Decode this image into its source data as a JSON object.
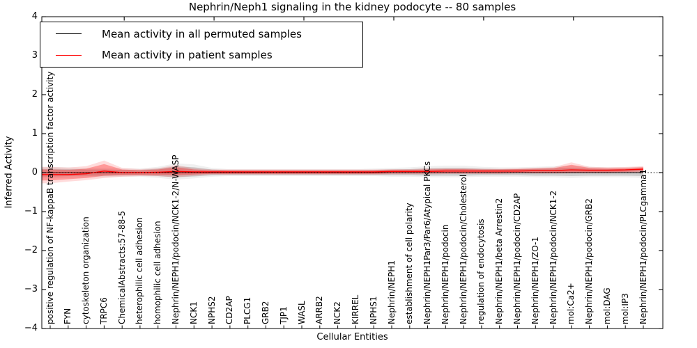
{
  "figure": {
    "title": "Nephrin/Neph1 signaling in the kidney podocyte -- 80 samples",
    "background": "#ffffff"
  },
  "chart_data": {
    "type": "line",
    "title": "Nephrin/Neph1 signaling in the kidney podocyte -- 80 samples",
    "xlabel": "Cellular Entities",
    "ylabel": "Inferred Activity",
    "ylim": [
      -4,
      4
    ],
    "yticks": [
      4,
      3,
      2,
      1,
      0,
      -1,
      -2,
      -3,
      -4
    ],
    "x_numeric_top_ticks": [
      5,
      10,
      15,
      20,
      25,
      30
    ],
    "grid": false,
    "zero_line_style": "dotted",
    "legend_position": "upper left",
    "categories": [
      "positive regulation of NF-kappaB transcription factor activity",
      "FYN",
      "cytoskeleton organization",
      "TRPC6",
      "ChemicalAbstracts:57-88-5",
      "heterophilic cell adhesion",
      "homophilic cell adhesion",
      "Nephrin/NEPH1/podocin/NCK1-2/N-WASP",
      "NCK1",
      "NPHS2",
      "CD2AP",
      "PLCG1",
      "GRB2",
      "TJP1",
      "WASL",
      "ARRB2",
      "NCK2",
      "KIRREL",
      "NPHS1",
      "Nephrin/NEPH1",
      "establishment of cell polarity",
      "Nephrin/NEPH1Par3/Par6/Atypical PKCs",
      "Nephrin/NEPH1/podocin",
      "Nephrin/NEPH1/podocin/Cholesterol",
      "regulation of endocytosis",
      "Nephrin/NEPH1/beta Arrestin2",
      "Nephrin/NEPH1/podocin/CD2AP",
      "Nephrin/NEPH1/ZO-1",
      "Nephrin/NEPH1/podocin/NCK1-2",
      "mol:Ca2+",
      "Nephrin/NEPH1/podocin/GRB2",
      "mol:DAG",
      "mol:IP3",
      "Nephrin/NEPH1/podocin/PLCgamma1"
    ],
    "series": [
      {
        "name": "Mean activity in all permuted samples",
        "color": "#000000",
        "band_color": "#000000",
        "band_opacity": 0.14,
        "values": [
          0,
          0,
          0,
          0,
          0,
          0,
          0,
          0,
          0,
          0,
          0,
          0,
          0,
          0,
          0,
          0,
          0,
          0,
          0,
          0,
          0,
          0,
          0,
          0,
          0,
          0,
          0,
          0,
          0,
          0,
          0,
          0,
          0,
          0
        ],
        "band_upper": [
          0.1,
          0.09,
          0.08,
          0.08,
          0.07,
          0.07,
          0.1,
          0.16,
          0.14,
          0.08,
          0.06,
          0.06,
          0.06,
          0.06,
          0.06,
          0.06,
          0.06,
          0.06,
          0.07,
          0.08,
          0.09,
          0.11,
          0.12,
          0.12,
          0.1,
          0.09,
          0.09,
          0.1,
          0.11,
          0.12,
          0.1,
          0.09,
          0.09,
          0.1
        ],
        "band_lower": [
          -0.1,
          -0.09,
          -0.08,
          -0.08,
          -0.07,
          -0.07,
          -0.09,
          -0.12,
          -0.1,
          -0.07,
          -0.06,
          -0.06,
          -0.06,
          -0.06,
          -0.06,
          -0.06,
          -0.06,
          -0.06,
          -0.06,
          -0.07,
          -0.07,
          -0.08,
          -0.08,
          -0.08,
          -0.07,
          -0.07,
          -0.07,
          -0.08,
          -0.08,
          -0.09,
          -0.08,
          -0.08,
          -0.08,
          -0.09
        ]
      },
      {
        "name": "Mean activity in patient samples",
        "color": "#ff0000",
        "band_color": "#ff0000",
        "band_opacity": 0.3,
        "values": [
          -0.05,
          -0.05,
          -0.03,
          0.04,
          0.0,
          0.0,
          0.01,
          0.03,
          0.02,
          0.02,
          0.02,
          0.02,
          0.02,
          0.02,
          0.02,
          0.02,
          0.02,
          0.02,
          0.02,
          0.03,
          0.03,
          0.03,
          0.04,
          0.04,
          0.04,
          0.04,
          0.04,
          0.05,
          0.05,
          0.07,
          0.06,
          0.06,
          0.07,
          0.09
        ],
        "band_upper": [
          0.08,
          0.07,
          0.1,
          0.22,
          0.08,
          0.06,
          0.08,
          0.14,
          0.08,
          0.06,
          0.06,
          0.06,
          0.06,
          0.06,
          0.06,
          0.06,
          0.06,
          0.06,
          0.06,
          0.07,
          0.07,
          0.08,
          0.09,
          0.09,
          0.08,
          0.08,
          0.09,
          0.1,
          0.11,
          0.2,
          0.12,
          0.11,
          0.12,
          0.14
        ],
        "band_lower": [
          -0.2,
          -0.17,
          -0.14,
          -0.08,
          -0.07,
          -0.06,
          -0.06,
          -0.07,
          -0.05,
          -0.03,
          -0.03,
          -0.03,
          -0.03,
          -0.03,
          -0.03,
          -0.03,
          -0.03,
          -0.03,
          -0.03,
          -0.02,
          -0.02,
          -0.02,
          -0.01,
          -0.01,
          -0.01,
          -0.01,
          0.0,
          0.0,
          0.0,
          0.01,
          0.01,
          0.01,
          0.02,
          0.03
        ]
      }
    ]
  }
}
